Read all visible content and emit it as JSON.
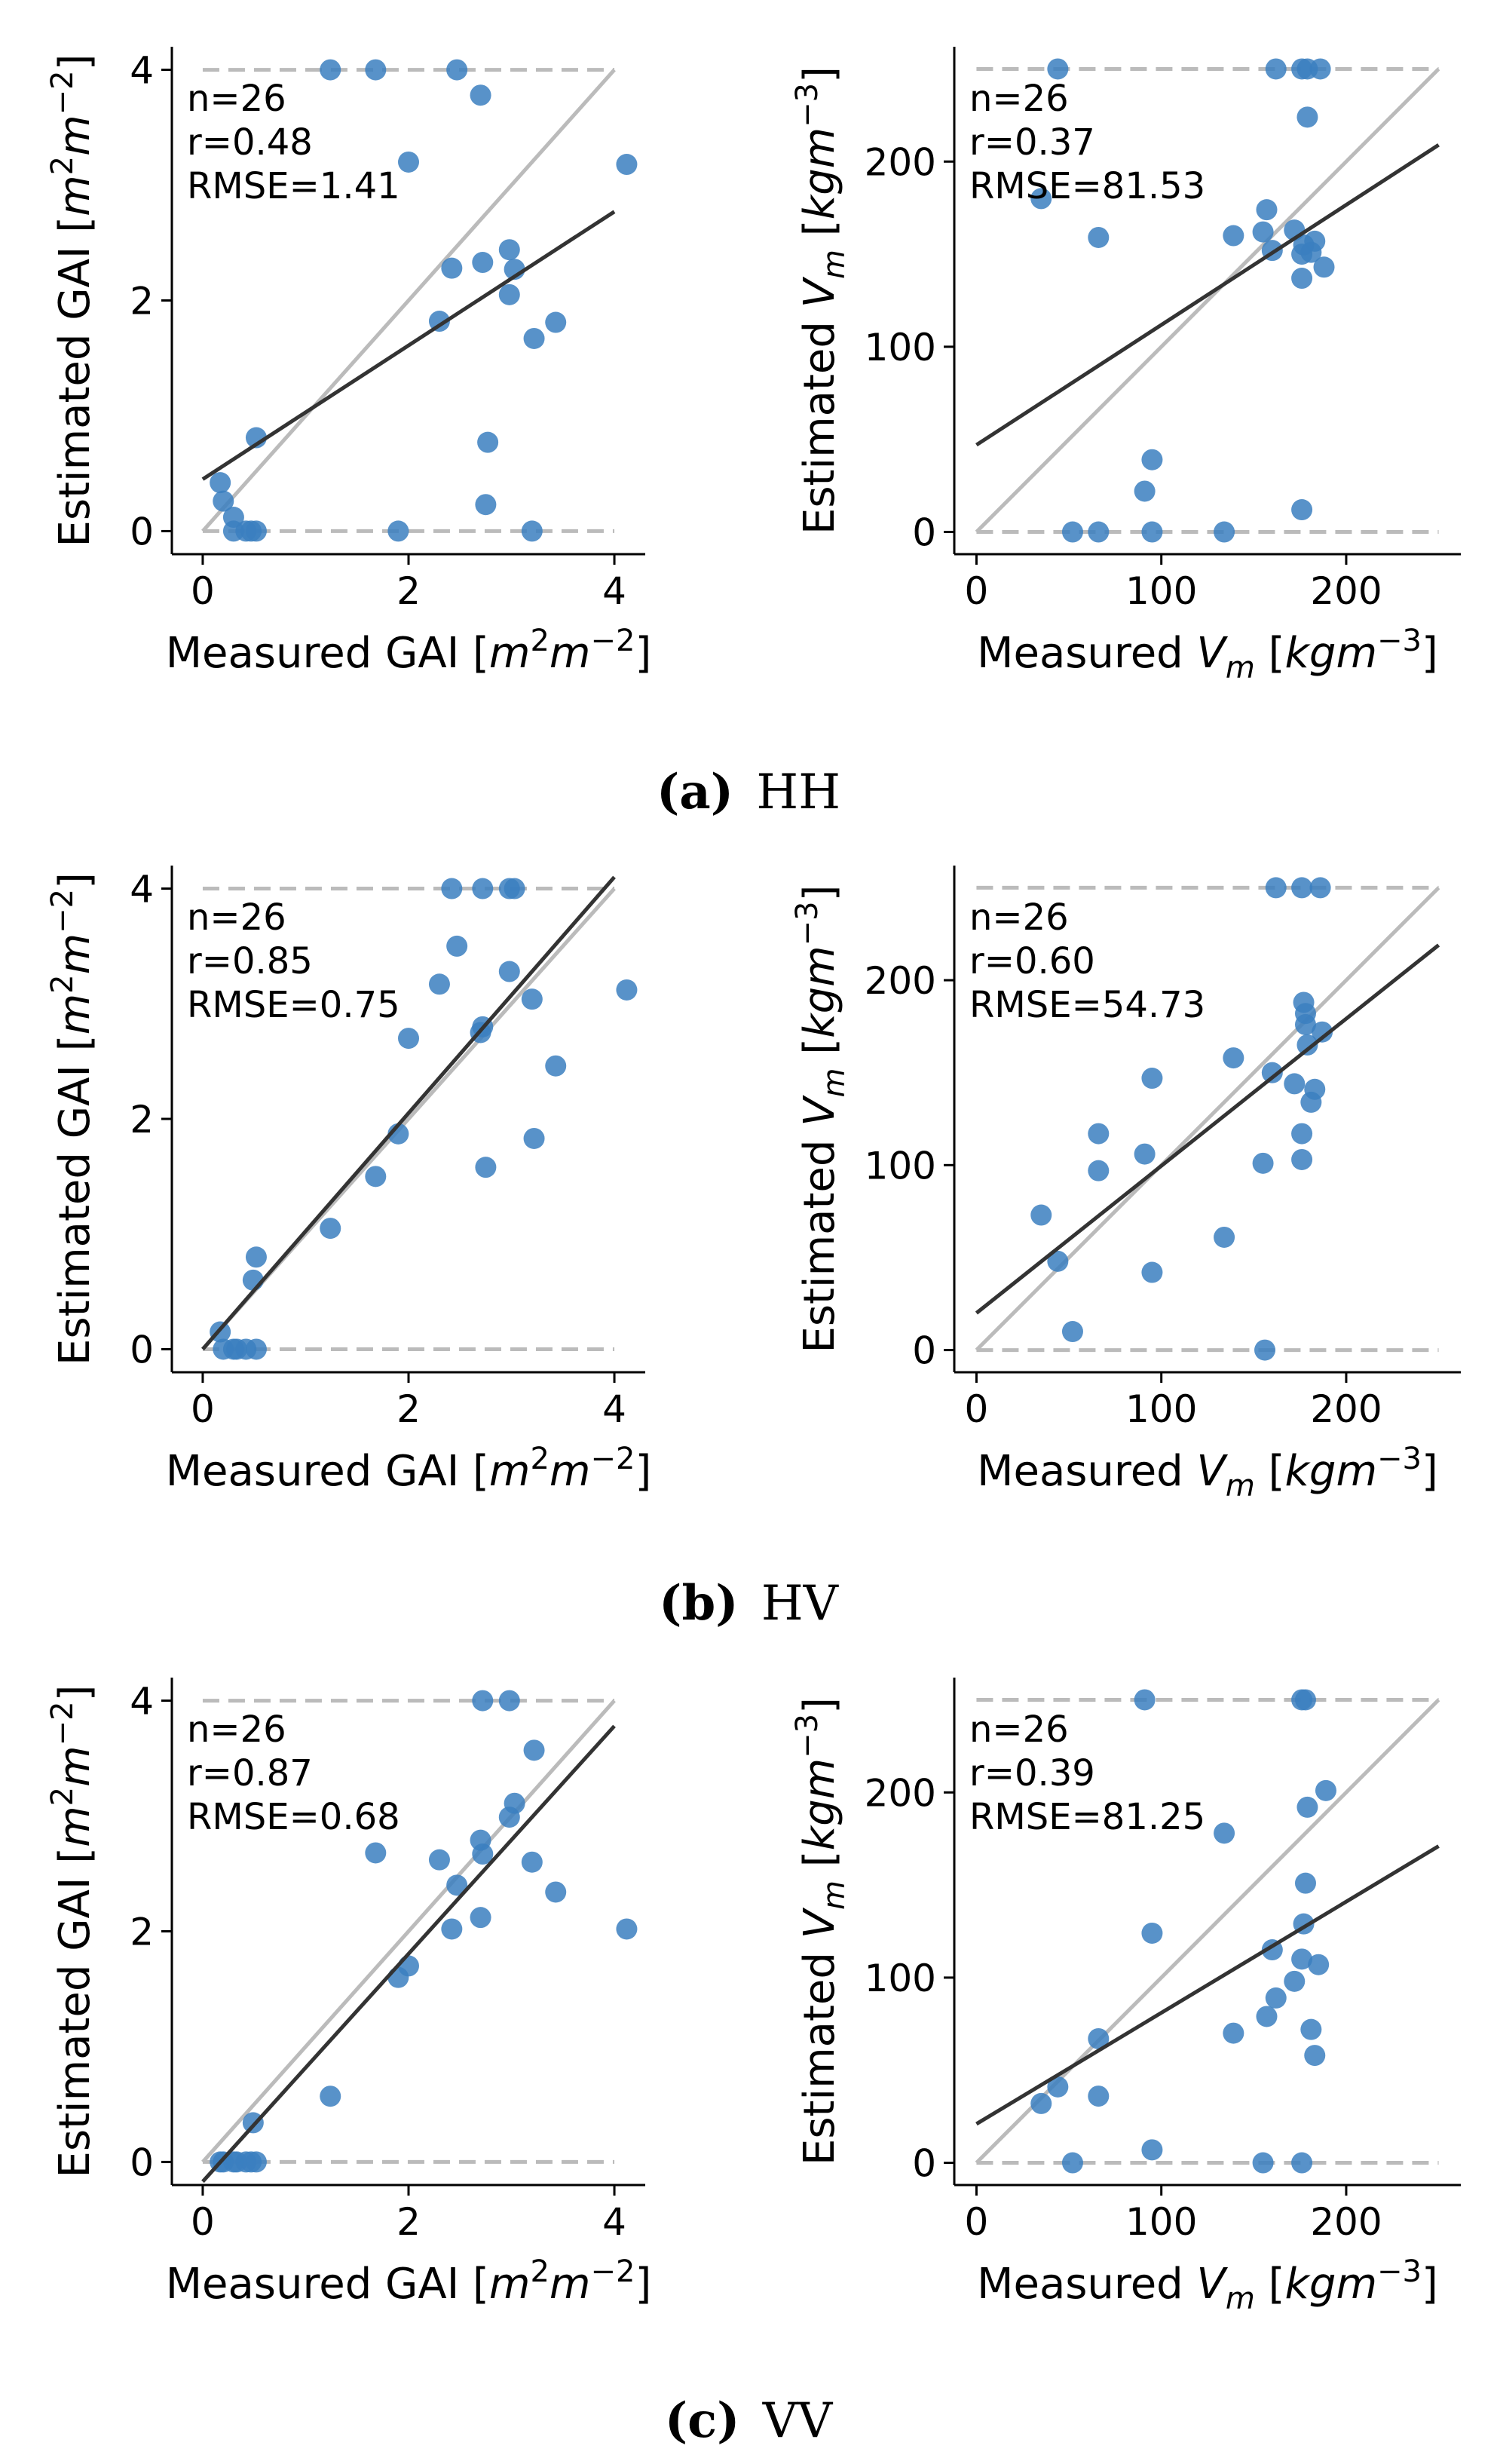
{
  "chart_data": [
    {
      "id": "hh-gai",
      "type": "scatter",
      "xlabel": "Measured GAI [m^2 m^-2]",
      "xlabel_base": "Measured GAI [",
      "xlabel_unit": "m",
      "xlabel_exp1": "2",
      "xlabel_unit2": "m",
      "xlabel_exp2": "−2",
      "xlabel_end": "]",
      "ylabel": "Estimated GAI [m^2 m^-2]",
      "ylabel_base": "Estimated GAI [",
      "ylabel_unit": "m",
      "ylabel_exp1": "2",
      "ylabel_unit2": "m",
      "ylabel_exp2": "−2",
      "ylabel_end": "]",
      "xlim": [
        -0.3,
        4.3
      ],
      "ylim": [
        -0.2,
        4.2
      ],
      "xticks": [
        0,
        2,
        4
      ],
      "yticks": [
        0,
        2,
        4
      ],
      "cap": 4,
      "stats": [
        "n=26",
        "r=0.48",
        "RMSE=1.41"
      ],
      "fit": {
        "x": [
          0,
          4
        ],
        "y": [
          0.45,
          2.77
        ]
      },
      "points": [
        [
          0.17,
          0.42
        ],
        [
          0.2,
          0.26
        ],
        [
          0.3,
          0.12
        ],
        [
          0.3,
          0.0
        ],
        [
          0.42,
          0.0
        ],
        [
          0.47,
          0.0
        ],
        [
          0.52,
          0.0
        ],
        [
          0.52,
          0.81
        ],
        [
          1.24,
          4.0
        ],
        [
          1.68,
          4.0
        ],
        [
          1.9,
          0.0
        ],
        [
          2.0,
          3.2
        ],
        [
          2.3,
          1.82
        ],
        [
          2.42,
          2.28
        ],
        [
          2.47,
          4.0
        ],
        [
          2.7,
          3.78
        ],
        [
          2.72,
          2.33
        ],
        [
          2.75,
          0.23
        ],
        [
          2.77,
          0.77
        ],
        [
          2.98,
          2.44
        ],
        [
          2.98,
          2.05
        ],
        [
          3.03,
          2.27
        ],
        [
          3.2,
          0.0
        ],
        [
          3.22,
          1.67
        ],
        [
          3.43,
          1.81
        ],
        [
          4.12,
          3.18
        ]
      ]
    },
    {
      "id": "hh-vm",
      "type": "scatter",
      "xlabel": "Measured V_m [kgm^-3]",
      "xlabel_base": "Measured ",
      "xlabel_unit": "V",
      "xlabel_exp1": "m",
      "xlabel_unit2": "kgm",
      "xlabel_exp2": "−3",
      "xlabel_end": "]",
      "ylabel": "Estimated V_m [kgm^-3]",
      "ylabel_base": "Estimated ",
      "ylabel_unit": "V",
      "ylabel_exp1": "m",
      "ylabel_unit2": "kgm",
      "ylabel_exp2": "−3",
      "ylabel_end": "]",
      "xlim": [
        -12,
        262
      ],
      "ylim": [
        -12,
        262
      ],
      "xticks": [
        0,
        100,
        200
      ],
      "yticks": [
        0,
        100,
        200
      ],
      "cap": 250,
      "stats": [
        "n=26",
        "r=0.37",
        "RMSE=81.53"
      ],
      "fit": {
        "x": [
          0,
          250
        ],
        "y": [
          47,
          209
        ]
      },
      "points": [
        [
          35,
          180
        ],
        [
          44,
          250
        ],
        [
          52,
          0
        ],
        [
          66,
          159
        ],
        [
          66,
          0
        ],
        [
          91,
          22
        ],
        [
          95,
          39
        ],
        [
          95,
          0
        ],
        [
          134,
          0
        ],
        [
          139,
          160
        ],
        [
          155,
          162
        ],
        [
          157,
          174
        ],
        [
          160,
          152
        ],
        [
          162,
          250
        ],
        [
          172,
          163
        ],
        [
          176,
          12
        ],
        [
          176,
          137
        ],
        [
          176,
          150
        ],
        [
          176,
          250
        ],
        [
          177,
          155
        ],
        [
          179,
          224
        ],
        [
          179,
          250
        ],
        [
          181,
          151
        ],
        [
          183,
          157
        ],
        [
          186,
          250
        ],
        [
          188,
          143
        ]
      ]
    },
    {
      "id": "hv-gai",
      "type": "scatter",
      "xlabel_base": "Measured GAI [",
      "xlabel_unit": "m",
      "xlabel_exp1": "2",
      "xlabel_unit2": "m",
      "xlabel_exp2": "−2",
      "xlabel_end": "]",
      "ylabel_base": "Estimated GAI [",
      "ylabel_unit": "m",
      "ylabel_exp1": "2",
      "ylabel_unit2": "m",
      "ylabel_exp2": "−2",
      "ylabel_end": "]",
      "xlim": [
        -0.3,
        4.3
      ],
      "ylim": [
        -0.2,
        4.2
      ],
      "xticks": [
        0,
        2,
        4
      ],
      "yticks": [
        0,
        2,
        4
      ],
      "cap": 4,
      "stats": [
        "n=26",
        "r=0.85",
        "RMSE=0.75"
      ],
      "fit": {
        "x": [
          0,
          4
        ],
        "y": [
          0.0,
          4.1
        ]
      },
      "points": [
        [
          0.17,
          0.15
        ],
        [
          0.2,
          0.0
        ],
        [
          0.3,
          0.0
        ],
        [
          0.33,
          0.0
        ],
        [
          0.42,
          0.0
        ],
        [
          0.49,
          0.6
        ],
        [
          0.52,
          0.8
        ],
        [
          0.52,
          0.0
        ],
        [
          1.24,
          1.05
        ],
        [
          1.68,
          1.5
        ],
        [
          1.9,
          1.87
        ],
        [
          2.0,
          2.7
        ],
        [
          2.3,
          3.17
        ],
        [
          2.42,
          4.0
        ],
        [
          2.47,
          3.5
        ],
        [
          2.7,
          2.75
        ],
        [
          2.72,
          2.8
        ],
        [
          2.72,
          4.0
        ],
        [
          2.75,
          1.58
        ],
        [
          2.98,
          4.0
        ],
        [
          2.98,
          3.28
        ],
        [
          3.03,
          4.0
        ],
        [
          3.2,
          3.04
        ],
        [
          3.22,
          1.83
        ],
        [
          3.43,
          2.46
        ],
        [
          4.12,
          3.12
        ]
      ]
    },
    {
      "id": "hv-vm",
      "type": "scatter",
      "xlabel_base": "Measured ",
      "xlabel_unit": "V",
      "xlabel_exp1": "m",
      "xlabel_unit2": "kgm",
      "xlabel_exp2": "−3",
      "xlabel_end": "]",
      "ylabel_base": "Estimated ",
      "ylabel_unit": "V",
      "ylabel_exp1": "m",
      "ylabel_unit2": "kgm",
      "ylabel_exp2": "−3",
      "ylabel_end": "]",
      "xlim": [
        -12,
        262
      ],
      "ylim": [
        -12,
        262
      ],
      "xticks": [
        0,
        100,
        200
      ],
      "yticks": [
        0,
        100,
        200
      ],
      "cap": 250,
      "stats": [
        "n=26",
        "r=0.60",
        "RMSE=54.73"
      ],
      "fit": {
        "x": [
          0,
          250
        ],
        "y": [
          20,
          219
        ]
      },
      "points": [
        [
          35,
          73
        ],
        [
          44,
          48
        ],
        [
          52,
          10
        ],
        [
          66,
          97
        ],
        [
          66,
          117
        ],
        [
          91,
          106
        ],
        [
          95,
          147
        ],
        [
          95,
          42
        ],
        [
          134,
          61
        ],
        [
          139,
          158
        ],
        [
          155,
          101
        ],
        [
          156,
          0
        ],
        [
          160,
          150
        ],
        [
          162,
          250
        ],
        [
          172,
          144
        ],
        [
          176,
          117
        ],
        [
          176,
          103
        ],
        [
          176,
          250
        ],
        [
          177,
          188
        ],
        [
          178,
          176
        ],
        [
          178,
          182
        ],
        [
          179,
          165
        ],
        [
          181,
          134
        ],
        [
          183,
          141
        ],
        [
          186,
          250
        ],
        [
          187,
          172
        ]
      ]
    },
    {
      "id": "vv-gai",
      "type": "scatter",
      "xlabel_base": "Measured GAI [",
      "xlabel_unit": "m",
      "xlabel_exp1": "2",
      "xlabel_unit2": "m",
      "xlabel_exp2": "−2",
      "xlabel_end": "]",
      "ylabel_base": "Estimated GAI [",
      "ylabel_unit": "m",
      "ylabel_exp1": "2",
      "ylabel_unit2": "m",
      "ylabel_exp2": "−2",
      "ylabel_end": "]",
      "xlim": [
        -0.3,
        4.3
      ],
      "ylim": [
        -0.2,
        4.2
      ],
      "xticks": [
        0,
        2,
        4
      ],
      "yticks": [
        0,
        2,
        4
      ],
      "cap": 4,
      "stats": [
        "n=26",
        "r=0.87",
        "RMSE=0.68"
      ],
      "fit": {
        "x": [
          0,
          4
        ],
        "y": [
          -0.17,
          3.78
        ]
      },
      "points": [
        [
          0.17,
          0.0
        ],
        [
          0.2,
          0.0
        ],
        [
          0.3,
          0.0
        ],
        [
          0.33,
          0.0
        ],
        [
          0.42,
          0.0
        ],
        [
          0.47,
          0.0
        ],
        [
          0.49,
          0.34
        ],
        [
          0.52,
          0.0
        ],
        [
          1.24,
          0.57
        ],
        [
          1.68,
          2.68
        ],
        [
          1.9,
          1.6
        ],
        [
          2.0,
          1.7
        ],
        [
          2.3,
          2.62
        ],
        [
          2.42,
          2.02
        ],
        [
          2.47,
          2.4
        ],
        [
          2.7,
          2.12
        ],
        [
          2.72,
          2.67
        ],
        [
          2.72,
          4.0
        ],
        [
          2.7,
          2.79
        ],
        [
          2.98,
          4.0
        ],
        [
          2.98,
          2.99
        ],
        [
          3.03,
          3.11
        ],
        [
          3.2,
          2.6
        ],
        [
          3.22,
          3.57
        ],
        [
          3.43,
          2.34
        ],
        [
          4.12,
          2.02
        ]
      ]
    },
    {
      "id": "vv-vm",
      "type": "scatter",
      "xlabel_base": "Measured ",
      "xlabel_unit": "V",
      "xlabel_exp1": "m",
      "xlabel_unit2": "kgm",
      "xlabel_exp2": "−3",
      "xlabel_end": "]",
      "ylabel_base": "Estimated ",
      "ylabel_unit": "V",
      "ylabel_exp1": "m",
      "ylabel_unit2": "kgm",
      "ylabel_exp2": "−3",
      "ylabel_end": "]",
      "xlim": [
        -12,
        262
      ],
      "ylim": [
        -12,
        262
      ],
      "xticks": [
        0,
        100,
        200
      ],
      "yticks": [
        0,
        100,
        200
      ],
      "cap": 250,
      "stats": [
        "n=26",
        "r=0.39",
        "RMSE=81.25"
      ],
      "fit": {
        "x": [
          0,
          250
        ],
        "y": [
          21,
          171
        ]
      },
      "points": [
        [
          35,
          32
        ],
        [
          44,
          41
        ],
        [
          52,
          0
        ],
        [
          66,
          67
        ],
        [
          66,
          36
        ],
        [
          91,
          250
        ],
        [
          95,
          124
        ],
        [
          95,
          7
        ],
        [
          134,
          178
        ],
        [
          139,
          70
        ],
        [
          155,
          0
        ],
        [
          157,
          79
        ],
        [
          160,
          115
        ],
        [
          162,
          89
        ],
        [
          172,
          98
        ],
        [
          176,
          110
        ],
        [
          176,
          250
        ],
        [
          176,
          0
        ],
        [
          177,
          129
        ],
        [
          178,
          151
        ],
        [
          178,
          250
        ],
        [
          179,
          192
        ],
        [
          181,
          72
        ],
        [
          183,
          58
        ],
        [
          185,
          107
        ],
        [
          189,
          201
        ]
      ]
    }
  ],
  "captions": [
    {
      "letter": "(a)",
      "label": "HH"
    },
    {
      "letter": "(b)",
      "label": "HV"
    },
    {
      "letter": "(c)",
      "label": "VV"
    }
  ],
  "colors": {
    "points": "#3b7fbf",
    "fit": "#333333",
    "identity": "#bbbbbb",
    "cap": "#bbbbbb"
  }
}
